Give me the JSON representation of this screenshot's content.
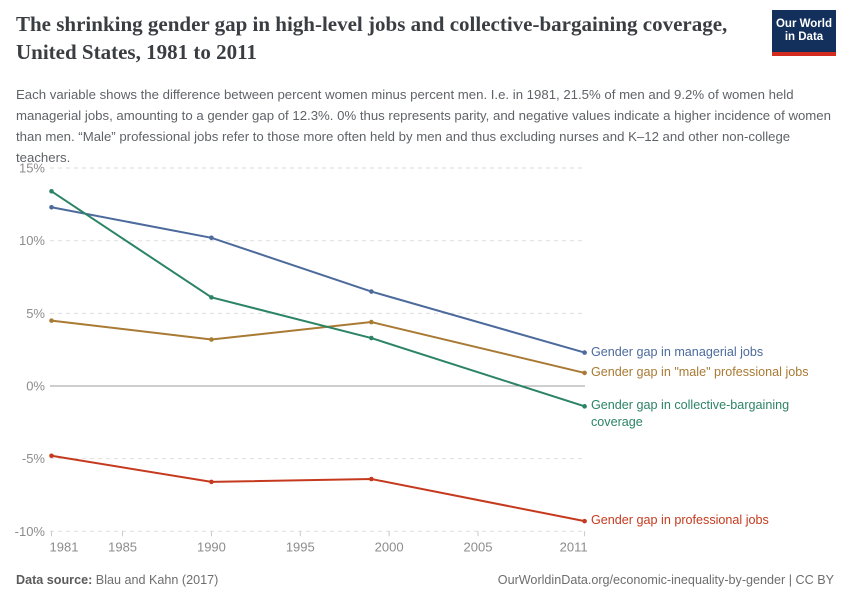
{
  "header": {
    "title": "The shrinking gender gap in high-level jobs and collective-bargaining coverage, United States, 1981 to 2011",
    "logo": {
      "line1": "Our World",
      "line2": "in Data",
      "bg_color": "#12305b",
      "stripe_color": "#d42b1f"
    }
  },
  "subtitle": "Each variable shows the difference between percent women minus percent men. I.e. in 1981, 21.5% of men and 9.2% of women held managerial jobs, amounting to a gender gap of 12.3%. 0% thus represents parity, and negative values indicate a higher incidence of women than men. “Male” professional jobs refer to those more often held by men and thus excluding nurses and K–12 and other non-college teachers.",
  "chart_data": {
    "type": "line",
    "x": [
      1981,
      1990,
      1999,
      2011
    ],
    "series": [
      {
        "name": "Gender gap in managerial jobs",
        "values": [
          12.3,
          10.2,
          6.5,
          2.3
        ],
        "color": "#4C6A9C",
        "label_lines": [
          "Gender gap in managerial jobs"
        ]
      },
      {
        "name": "Gender gap in \"male\" professional jobs",
        "values": [
          4.5,
          3.2,
          4.4,
          0.9
        ],
        "color": "#A87A33",
        "label_lines": [
          "Gender gap in \"male\" professional jobs"
        ]
      },
      {
        "name": "Gender gap in collective-bargaining coverage",
        "values": [
          13.4,
          6.1,
          3.3,
          -1.4
        ],
        "color": "#2C8465",
        "label_lines": [
          "Gender gap in collective-bargaining",
          "coverage"
        ]
      },
      {
        "name": "Gender gap in professional jobs",
        "values": [
          -4.8,
          -6.6,
          -6.4,
          -9.3
        ],
        "color": "#C53A1E",
        "label_lines": [
          "Gender gap in professional jobs"
        ]
      }
    ],
    "xlim": [
      1981,
      2011
    ],
    "ylim": [
      -10,
      15
    ],
    "x_ticks": [
      1981,
      1985,
      1990,
      1995,
      2000,
      2005,
      2011
    ],
    "x_tick_labels": [
      "1981",
      "1985",
      "1990",
      "1995",
      "2000",
      "2005",
      "2011"
    ],
    "y_ticks": [
      15,
      10,
      5,
      0,
      -5,
      -10
    ],
    "y_tick_labels": [
      "15%",
      "10%",
      "5%",
      "0%",
      "-5%",
      "-10%"
    ],
    "grid": "dashed horizontal",
    "legend_position": "end-of-line labels, right side",
    "markers": true
  },
  "footer": {
    "source_label": "Data source:",
    "source_value": " Blau and Kahn (2017)",
    "credit": "OurWorldinData.org/economic-inequality-by-gender | CC BY"
  }
}
